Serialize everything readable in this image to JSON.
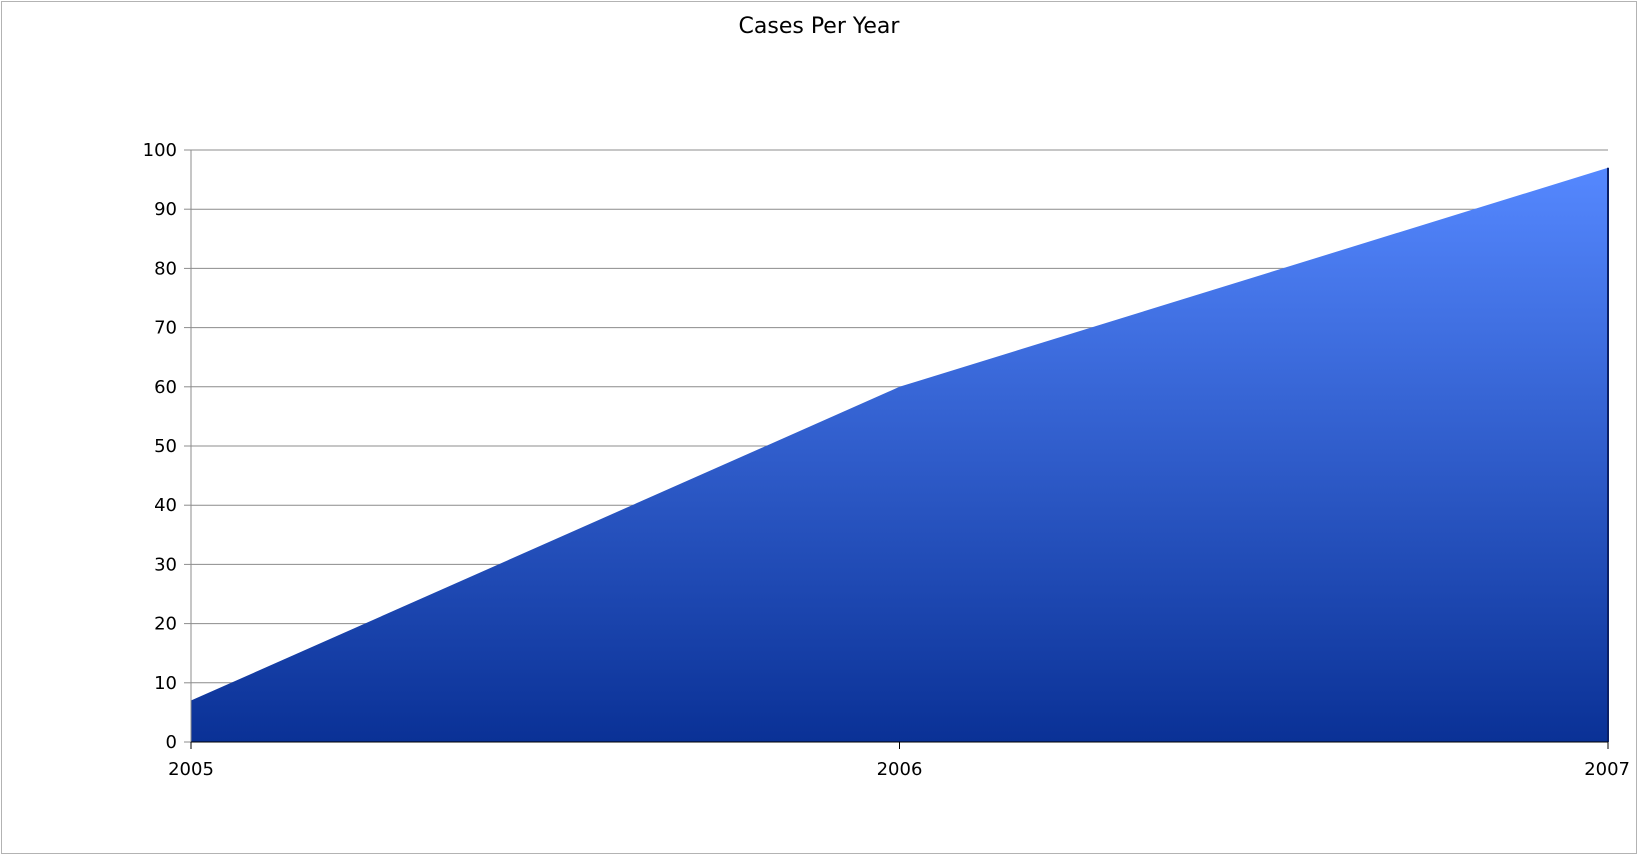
{
  "chart_data": {
    "type": "area",
    "title": "Cases Per Year",
    "xlabel": "",
    "ylabel": "",
    "x": [
      "2005",
      "2006",
      "2007"
    ],
    "series": [
      {
        "values": [
          7,
          60,
          97
        ]
      }
    ],
    "ylim": [
      0,
      100
    ],
    "yticks": [
      0,
      10,
      20,
      30,
      40,
      50,
      60,
      70,
      80,
      90,
      100
    ],
    "grid": true,
    "legend": "none",
    "colors": {
      "fill_top": "#5588ff",
      "fill_bottom": "#0a3196",
      "grid": "#8c8c8c",
      "axis": "#000000"
    }
  }
}
